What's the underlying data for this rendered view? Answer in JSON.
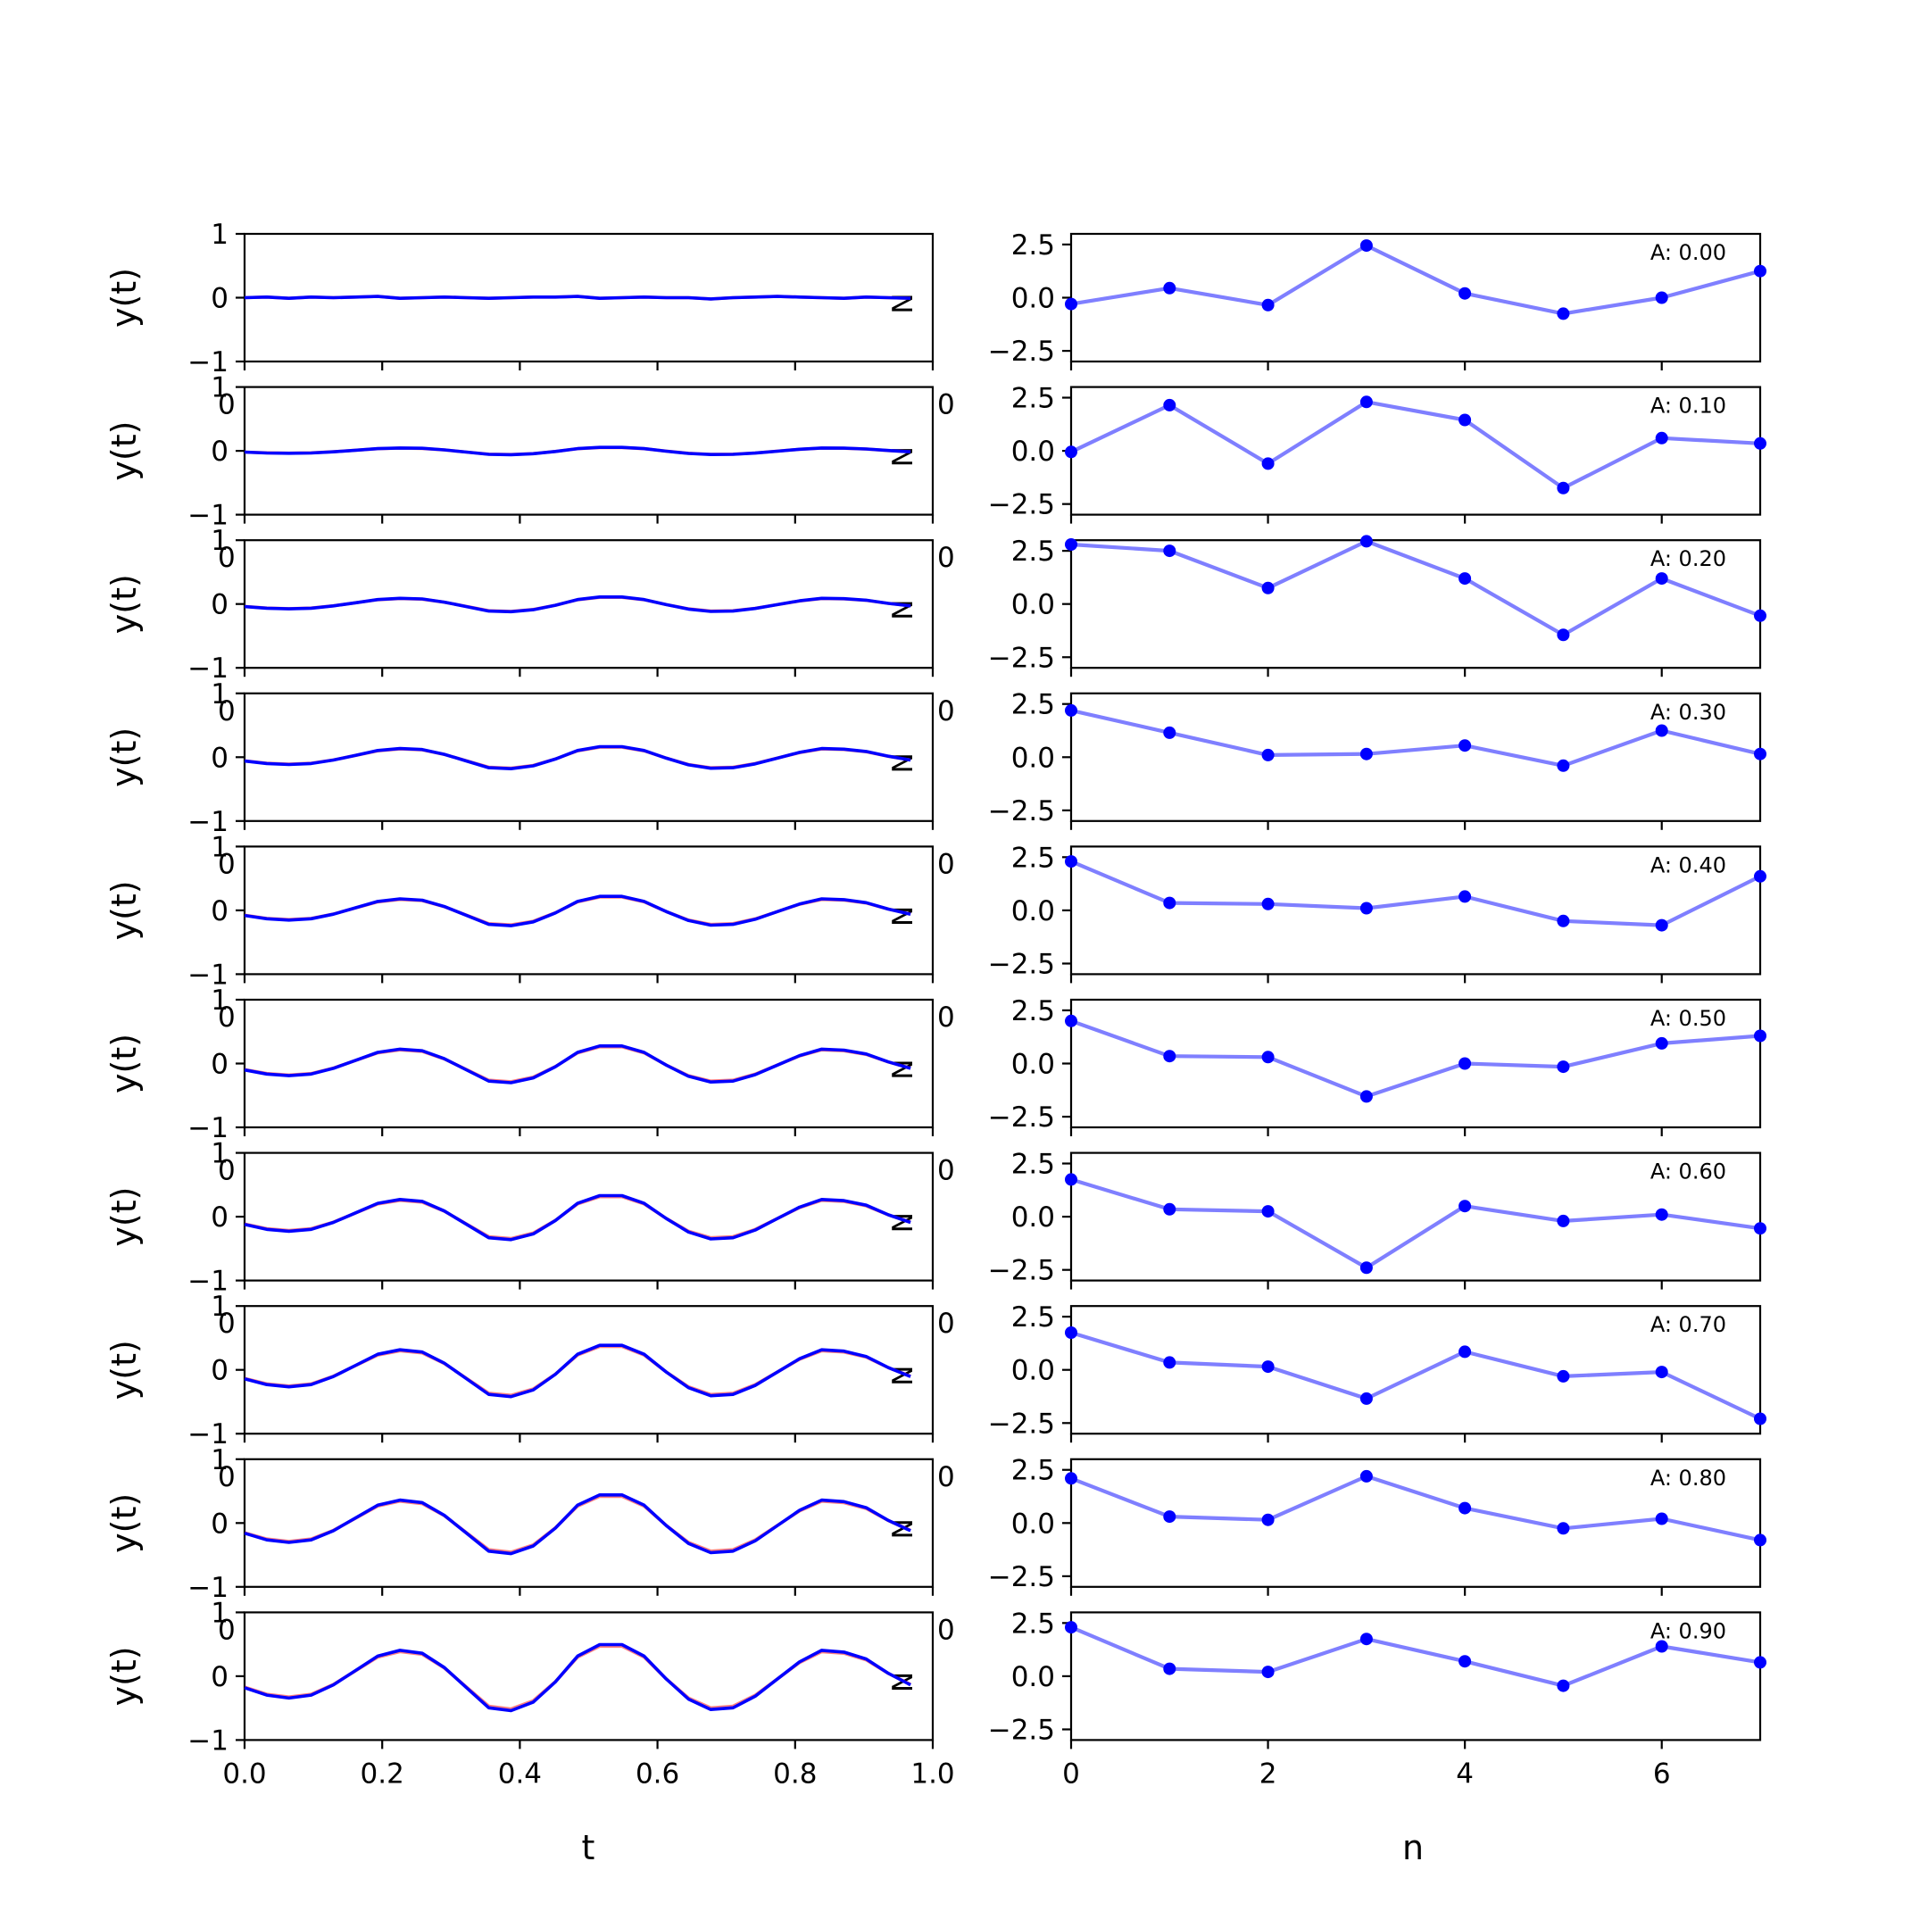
{
  "chart_data": [
    {
      "type": "line",
      "panel": "left",
      "xlabel": "t",
      "ylabel": "y(t)",
      "xlim": [
        0.0,
        1.0
      ],
      "ylim": [
        -1,
        1
      ],
      "x_ticks": [
        "0.0",
        "0.2",
        "0.4",
        "0.6",
        "0.8",
        "1.0"
      ],
      "y_ticks": [
        "−1",
        "0",
        "1"
      ],
      "corner_labels": {
        "bottom_right": "N",
        "top_left": "0"
      },
      "x": [
        0.0,
        0.0323,
        0.0645,
        0.0968,
        0.129,
        0.1613,
        0.1935,
        0.2258,
        0.2581,
        0.2903,
        0.3226,
        0.3548,
        0.3871,
        0.4194,
        0.4516,
        0.4839,
        0.5161,
        0.5484,
        0.5806,
        0.6129,
        0.6452,
        0.6774,
        0.7097,
        0.7419,
        0.7742,
        0.8065,
        0.8387,
        0.871,
        0.9032,
        0.9355,
        0.9677
      ],
      "shape": [
        -0.2,
        -0.33,
        -0.38,
        -0.33,
        -0.15,
        0.1,
        0.35,
        0.45,
        0.4,
        0.15,
        -0.2,
        -0.55,
        -0.6,
        -0.45,
        -0.1,
        0.35,
        0.55,
        0.55,
        0.35,
        -0.05,
        -0.4,
        -0.58,
        -0.55,
        -0.35,
        -0.05,
        0.25,
        0.45,
        0.42,
        0.3,
        0.05,
        -0.15
      ],
      "subplots": [
        {
          "amplitude": 0.0,
          "noise": [
            0.0,
            0.01,
            -0.01,
            0.01,
            0.0,
            0.01,
            0.02,
            -0.01,
            0.0,
            0.01,
            0.0,
            -0.01,
            0.0,
            0.01,
            0.01,
            0.02,
            -0.01,
            0.0,
            0.01,
            0.0,
            0.0,
            -0.02,
            0.0,
            0.01,
            0.02,
            0.01,
            0.0,
            -0.01,
            0.01,
            0.0,
            -0.01
          ]
        },
        {
          "amplitude": 0.1
        },
        {
          "amplitude": 0.2
        },
        {
          "amplitude": 0.3
        },
        {
          "amplitude": 0.4
        },
        {
          "amplitude": 0.5
        },
        {
          "amplitude": 0.6
        },
        {
          "amplitude": 0.7
        },
        {
          "amplitude": 0.8
        },
        {
          "amplitude": 0.9
        }
      ],
      "series": [
        {
          "color": "#0000ff",
          "scale": 1.0
        },
        {
          "color": "#ff0000",
          "alpha": 0.5,
          "scale": 0.95
        }
      ]
    },
    {
      "type": "line",
      "panel": "right",
      "xlabel": "n",
      "xlim": [
        0,
        7
      ],
      "ylim": [
        -3,
        3
      ],
      "x_ticks": [
        "0",
        "2",
        "4",
        "6"
      ],
      "y_ticks": [
        "−2.5",
        "0.0",
        "2.5"
      ],
      "corner_labels": {
        "top_left": "0"
      },
      "x": [
        0,
        1,
        2,
        3,
        4,
        5,
        6,
        7
      ],
      "color": "#0000ff",
      "subplots": [
        {
          "annotation": "A: 0.00",
          "values": [
            -0.3,
            0.45,
            -0.35,
            2.45,
            0.2,
            -0.75,
            0.0,
            1.25
          ]
        },
        {
          "annotation": "A: 0.10",
          "values": [
            -0.05,
            2.15,
            -0.6,
            2.3,
            1.45,
            -1.75,
            0.6,
            0.35
          ]
        },
        {
          "annotation": "A: 0.20",
          "values": [
            2.8,
            2.5,
            0.75,
            2.95,
            1.2,
            -1.45,
            1.2,
            -0.55
          ]
        },
        {
          "annotation": "A: 0.30",
          "values": [
            2.2,
            1.15,
            0.1,
            0.15,
            0.55,
            -0.4,
            1.25,
            0.15
          ]
        },
        {
          "annotation": "A: 0.40",
          "values": [
            2.3,
            0.35,
            0.3,
            0.1,
            0.65,
            -0.5,
            -0.7,
            1.6
          ]
        },
        {
          "annotation": "A: 0.50",
          "values": [
            2.0,
            0.35,
            0.3,
            -1.55,
            0.0,
            -0.15,
            0.95,
            1.3
          ]
        },
        {
          "annotation": "A: 0.60",
          "values": [
            1.75,
            0.35,
            0.25,
            -2.4,
            0.5,
            -0.2,
            0.1,
            -0.55
          ]
        },
        {
          "annotation": "A: 0.70",
          "values": [
            1.75,
            0.35,
            0.15,
            -1.35,
            0.85,
            -0.3,
            -0.1,
            -2.3
          ]
        },
        {
          "annotation": "A: 0.80",
          "values": [
            2.1,
            0.3,
            0.15,
            2.2,
            0.7,
            -0.25,
            0.2,
            -0.8
          ]
        },
        {
          "annotation": "A: 0.90",
          "values": [
            2.3,
            0.35,
            0.2,
            1.75,
            0.7,
            -0.45,
            1.4,
            0.65
          ]
        }
      ]
    }
  ]
}
